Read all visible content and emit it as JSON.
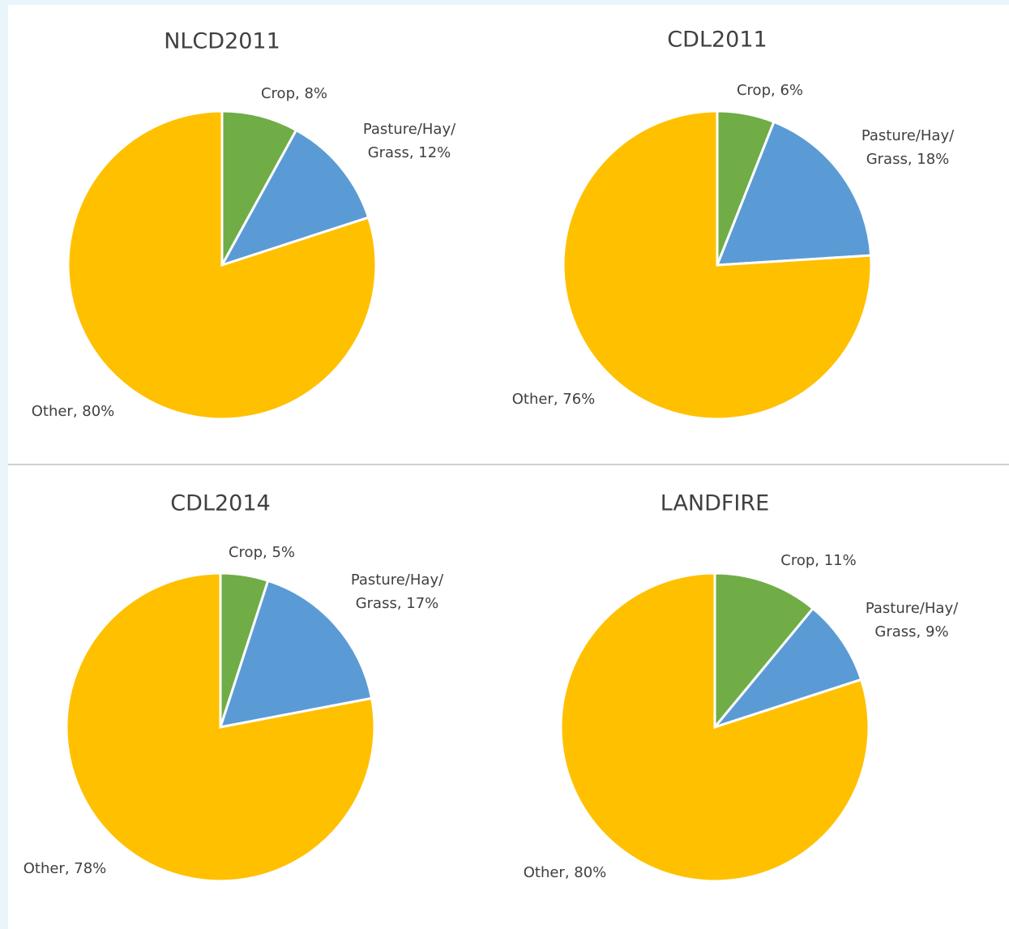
{
  "chart_data": [
    {
      "type": "pie",
      "title": "NLCD2011",
      "values": [
        8,
        12,
        80
      ],
      "value_labels": [
        [
          "Crop, 8%"
        ],
        [
          "Pasture/Hay/",
          "Grass, 12%"
        ],
        [
          "Other, 80%"
        ]
      ],
      "colors": [
        "#70ad47",
        "#5b9bd5",
        "#ffc000"
      ]
    },
    {
      "type": "pie",
      "title": "CDL2011",
      "values": [
        6,
        18,
        76
      ],
      "value_labels": [
        [
          "Crop, 6%"
        ],
        [
          "Pasture/Hay/",
          "Grass, 18%"
        ],
        [
          "Other, 76%"
        ]
      ],
      "colors": [
        "#70ad47",
        "#5b9bd5",
        "#ffc000"
      ]
    },
    {
      "type": "pie",
      "title": "CDL2014",
      "values": [
        5,
        17,
        78
      ],
      "value_labels": [
        [
          "Crop, 5%"
        ],
        [
          "Pasture/Hay/",
          "Grass, 17%"
        ],
        [
          "Other, 78%"
        ]
      ],
      "colors": [
        "#70ad47",
        "#5b9bd5",
        "#ffc000"
      ]
    },
    {
      "type": "pie",
      "title": "LANDFIRE",
      "values": [
        11,
        9,
        80
      ],
      "value_labels": [
        [
          "Crop, 11%"
        ],
        [
          "Pasture/Hay/",
          "Grass, 9%"
        ],
        [
          "Other, 80%"
        ]
      ],
      "colors": [
        "#70ad47",
        "#5b9bd5",
        "#ffc000"
      ]
    }
  ]
}
